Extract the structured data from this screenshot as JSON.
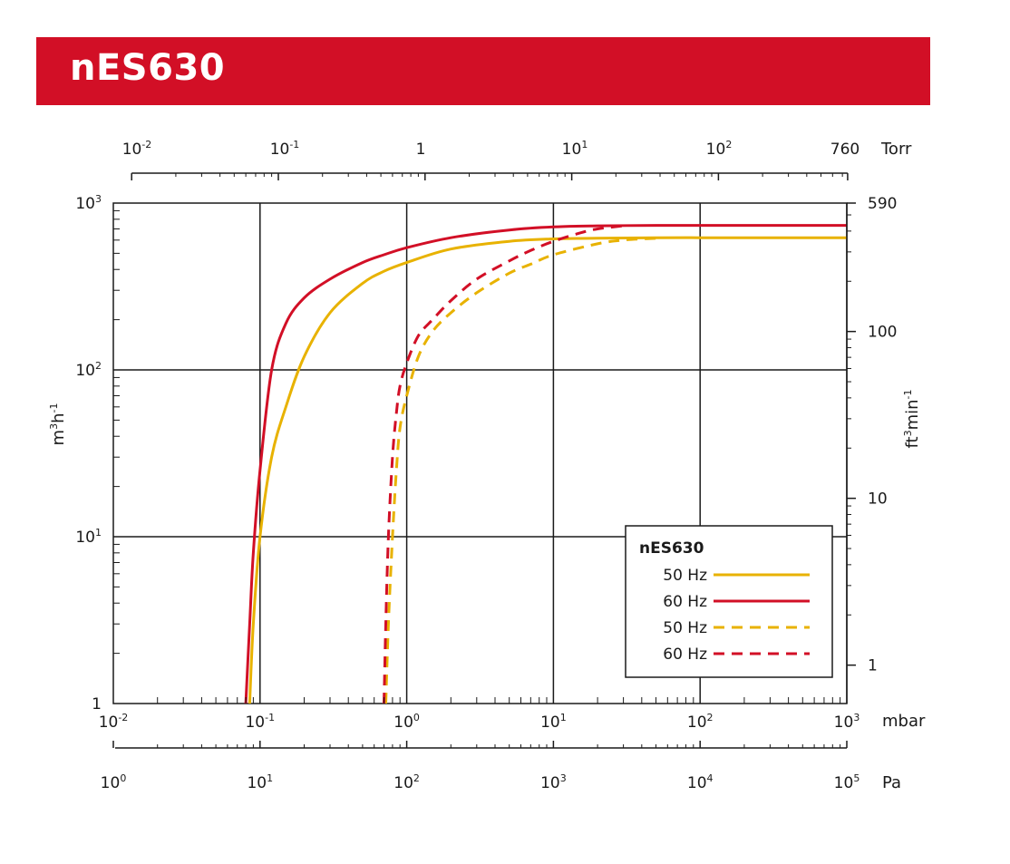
{
  "header": {
    "title": "nES630"
  },
  "colors": {
    "banner": "#d20f26",
    "series_50hz": "#e8b200",
    "series_60hz": "#d20f26",
    "grid": "#1a1a1a"
  },
  "chart_data": {
    "type": "line",
    "title": "nES630",
    "x_scale": "log",
    "y_scale": "log",
    "xlim": [
      0.01,
      1000
    ],
    "ylim": [
      1,
      1000
    ],
    "grid": true,
    "legend_position": "bottom-right",
    "axes": {
      "bottom": {
        "unit": "mbar",
        "ticks": [
          {
            "base": "10",
            "exp": "-2"
          },
          {
            "base": "10",
            "exp": "-1"
          },
          {
            "base": "10",
            "exp": "0"
          },
          {
            "base": "10",
            "exp": "1"
          },
          {
            "base": "10",
            "exp": "2"
          },
          {
            "base": "10",
            "exp": "3"
          }
        ]
      },
      "top": {
        "unit": "Torr",
        "ticks": [
          {
            "base": "10",
            "exp": "-2"
          },
          {
            "base": "10",
            "exp": "-1"
          },
          {
            "base": "1",
            "exp": ""
          },
          {
            "base": "10",
            "exp": "1"
          },
          {
            "base": "10",
            "exp": "2"
          },
          {
            "base": "760",
            "exp": ""
          }
        ]
      },
      "pa": {
        "unit": "Pa",
        "ticks": [
          {
            "base": "10",
            "exp": "0"
          },
          {
            "base": "10",
            "exp": "1"
          },
          {
            "base": "10",
            "exp": "2"
          },
          {
            "base": "10",
            "exp": "3"
          },
          {
            "base": "10",
            "exp": "4"
          },
          {
            "base": "10",
            "exp": "5"
          }
        ]
      },
      "left": {
        "label_base": "m",
        "label_sup1": "3",
        "label_mid": "h",
        "label_sup2": "-1",
        "ticks": [
          {
            "base": "1",
            "exp": ""
          },
          {
            "base": "10",
            "exp": "1"
          },
          {
            "base": "10",
            "exp": "2"
          },
          {
            "base": "10",
            "exp": "3"
          }
        ]
      },
      "right": {
        "label_base": "ft",
        "label_sup1": "3",
        "label_mid": "min",
        "label_sup2": "-1",
        "ticks": [
          "1",
          "10",
          "100",
          "590"
        ],
        "tick_values_m3h": [
          1.699,
          16.99,
          169.9,
          1002.4
        ]
      }
    },
    "legend": {
      "title": "nES630"
    },
    "series": [
      {
        "name": "50 Hz",
        "color": "#e8b200",
        "style": "solid",
        "x": [
          0.085,
          0.09,
          0.1,
          0.12,
          0.15,
          0.2,
          0.3,
          0.5,
          0.7,
          1,
          2,
          5,
          10,
          20,
          50,
          100,
          200,
          500,
          1000
        ],
        "y": [
          1,
          3,
          10,
          30,
          60,
          120,
          220,
          330,
          390,
          440,
          530,
          590,
          610,
          615,
          620,
          620,
          620,
          620,
          620
        ]
      },
      {
        "name": "60 Hz",
        "color": "#d20f26",
        "style": "solid",
        "x": [
          0.08,
          0.085,
          0.09,
          0.1,
          0.12,
          0.15,
          0.2,
          0.3,
          0.5,
          0.7,
          1,
          2,
          5,
          10,
          20,
          50,
          100,
          200,
          500,
          1000
        ],
        "y": [
          1,
          3,
          8,
          25,
          100,
          190,
          270,
          350,
          440,
          490,
          540,
          620,
          690,
          720,
          730,
          735,
          735,
          735,
          735,
          735
        ]
      },
      {
        "name": "50 Hz",
        "color": "#e8b200",
        "style": "dashed",
        "x": [
          0.72,
          0.75,
          0.8,
          0.85,
          0.9,
          1,
          1.2,
          1.5,
          2,
          3,
          5,
          7,
          10,
          20,
          30,
          50
        ],
        "y": [
          1,
          3,
          10,
          25,
          45,
          70,
          120,
          170,
          220,
          290,
          380,
          430,
          490,
          570,
          600,
          615
        ]
      },
      {
        "name": "60 Hz",
        "color": "#d20f26",
        "style": "dashed",
        "x": [
          0.7,
          0.72,
          0.75,
          0.8,
          0.85,
          0.9,
          1,
          1.2,
          1.5,
          2,
          3,
          5,
          7,
          10,
          15,
          20,
          30
        ],
        "y": [
          1,
          3,
          10,
          30,
          55,
          80,
          110,
          160,
          200,
          260,
          350,
          450,
          520,
          590,
          660,
          700,
          730
        ]
      }
    ]
  }
}
